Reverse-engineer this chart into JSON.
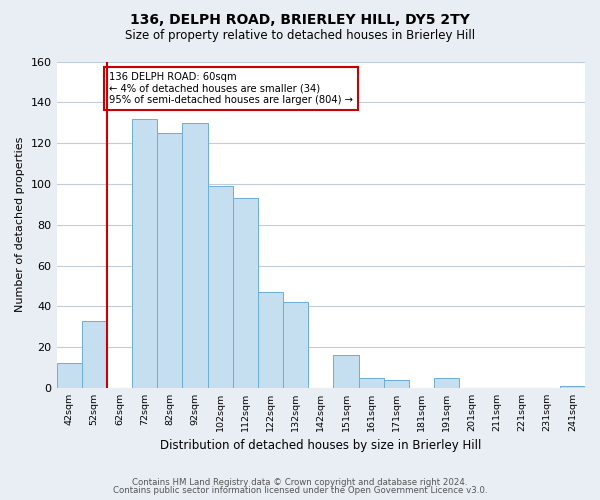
{
  "title": "136, DELPH ROAD, BRIERLEY HILL, DY5 2TY",
  "subtitle": "Size of property relative to detached houses in Brierley Hill",
  "xlabel": "Distribution of detached houses by size in Brierley Hill",
  "ylabel": "Number of detached properties",
  "bar_labels": [
    "42sqm",
    "52sqm",
    "62sqm",
    "72sqm",
    "82sqm",
    "92sqm",
    "102sqm",
    "112sqm",
    "122sqm",
    "132sqm",
    "142sqm",
    "151sqm",
    "161sqm",
    "171sqm",
    "181sqm",
    "191sqm",
    "201sqm",
    "211sqm",
    "221sqm",
    "231sqm",
    "241sqm"
  ],
  "bar_values": [
    12,
    33,
    0,
    132,
    125,
    130,
    99,
    93,
    47,
    42,
    0,
    16,
    5,
    4,
    0,
    5,
    0,
    0,
    0,
    0,
    1
  ],
  "bar_color": "#c5dff0",
  "bar_edge_color": "#6aaed6",
  "marker_color": "#cc0000",
  "annotation_line1": "136 DELPH ROAD: 60sqm",
  "annotation_line2": "← 4% of detached houses are smaller (34)",
  "annotation_line3": "95% of semi-detached houses are larger (804) →",
  "annotation_box_color": "#ffffff",
  "annotation_border_color": "#cc0000",
  "ylim": [
    0,
    160
  ],
  "yticks": [
    0,
    20,
    40,
    60,
    80,
    100,
    120,
    140,
    160
  ],
  "footer_line1": "Contains HM Land Registry data © Crown copyright and database right 2024.",
  "footer_line2": "Contains public sector information licensed under the Open Government Licence v3.0.",
  "bg_color": "#e8eef4",
  "plot_bg_color": "#ffffff",
  "grid_color": "#c0ccd8"
}
